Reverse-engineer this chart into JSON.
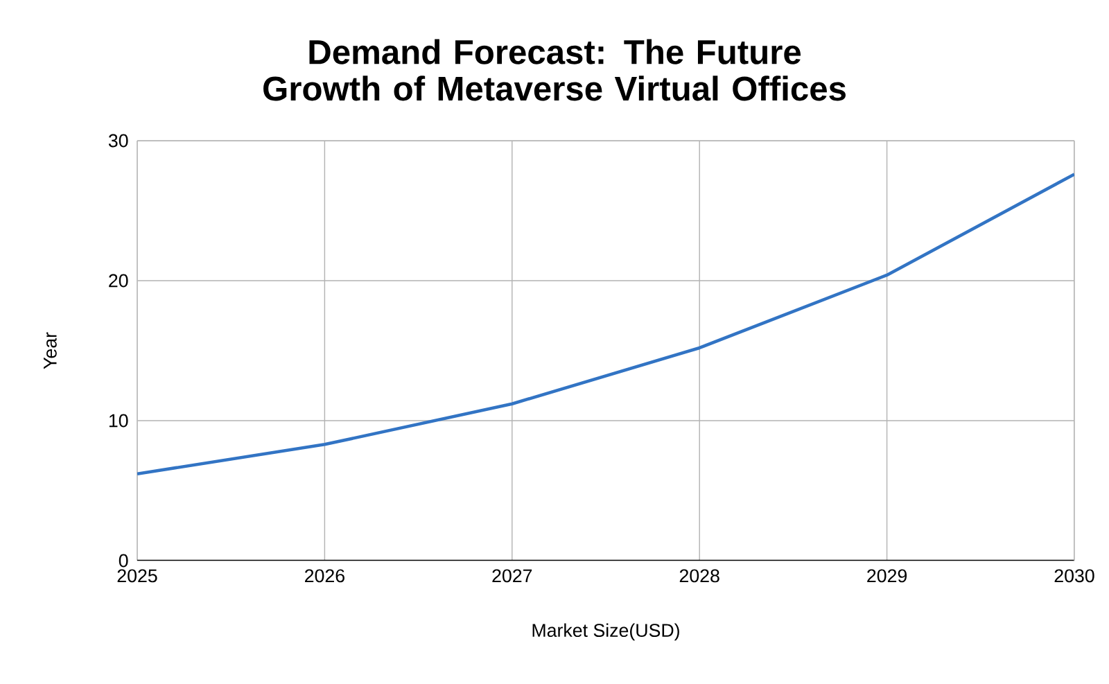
{
  "chart_data": {
    "type": "line",
    "title": "Demand Forecast: The Future Growth of Metaverse Virtual Offices",
    "xlabel": "Market Size(USD)",
    "ylabel": "Year",
    "x": [
      2025,
      2026,
      2027,
      2028,
      2029,
      2030
    ],
    "series": [
      {
        "color": "#3274c4",
        "values": [
          6.2,
          8.3,
          11.2,
          15.2,
          20.4,
          27.6
        ]
      }
    ],
    "xlim": [
      2025,
      2030
    ],
    "xticks": [
      2025,
      2026,
      2027,
      2028,
      2029,
      2030
    ],
    "ylim": [
      0,
      30
    ],
    "yticks": [
      0,
      10,
      20,
      30
    ],
    "grid": true,
    "marker": "none",
    "line_style": "solid"
  }
}
